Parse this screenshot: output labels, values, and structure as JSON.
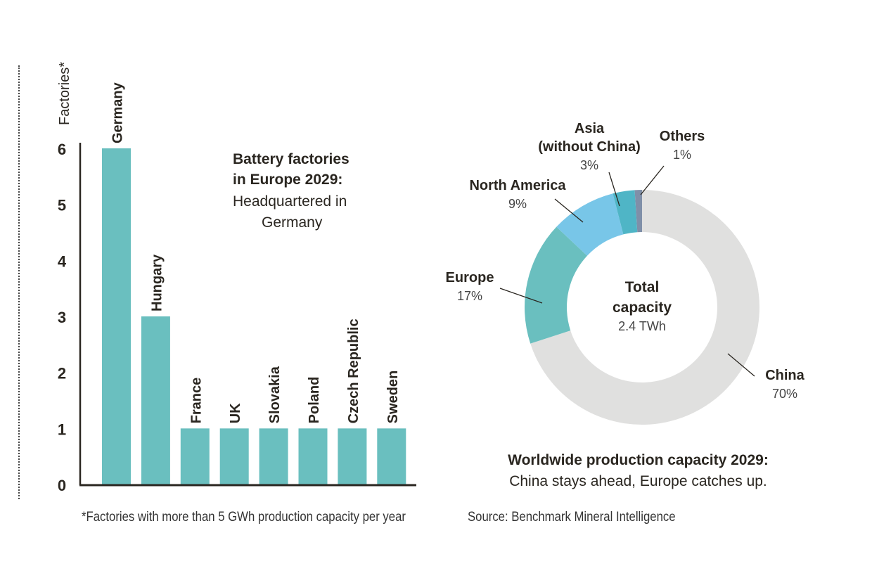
{
  "chart_data": [
    {
      "type": "bar",
      "title": "Battery factories in Europe 2029:",
      "subtitle": "Headquartered in Germany",
      "ylabel": "Factories*",
      "xlabel": "",
      "categories": [
        "Germany",
        "Hungary",
        "France",
        "UK",
        "Slovakia",
        "Poland",
        "Czech Republic",
        "Sweden"
      ],
      "values": [
        6,
        3,
        1,
        1,
        1,
        1,
        1,
        1
      ],
      "ylim": [
        0,
        6
      ],
      "yticks": [
        0,
        1,
        2,
        3,
        4,
        5,
        6
      ],
      "grid": false,
      "bar_color": "#6abfbf"
    },
    {
      "type": "pie",
      "donut": true,
      "title": "Worldwide production capacity 2029:",
      "subtitle": "China stays ahead, Europe catches up.",
      "center_label": "Total capacity",
      "center_value": "2.4 TWh",
      "slices": [
        {
          "label": "China",
          "value": 70,
          "display": "70%",
          "color": "#e0e0df"
        },
        {
          "label": "Europe",
          "value": 17,
          "display": "17%",
          "color": "#6abfbf"
        },
        {
          "label": "North America",
          "value": 9,
          "display": "9%",
          "color": "#78c6e8"
        },
        {
          "label": "Asia (without China)",
          "value": 3,
          "display": "3%",
          "color": "#4fb5c6"
        },
        {
          "label": "Others",
          "value": 1,
          "display": "1%",
          "color": "#7f8fa8"
        }
      ]
    }
  ],
  "bar": {
    "ylabel": "Factories*",
    "title_line1": "Battery factories",
    "title_line2": "in Europe 2029:",
    "subtitle_line1": "Headquartered in",
    "subtitle_line2": "Germany"
  },
  "donut": {
    "center_line1": "Total",
    "center_line2": "capacity",
    "center_value": "2.4 TWh",
    "labels": {
      "asia_line1": "Asia",
      "asia_line2": "(without China)",
      "asia_pct": "3%",
      "others": "Others",
      "others_pct": "1%",
      "na": "North America",
      "na_pct": "9%",
      "europe": "Europe",
      "europe_pct": "17%",
      "china": "China",
      "china_pct": "70%"
    },
    "caption_title": "Worldwide production capacity 2029:",
    "caption_sub": "China stays ahead, Europe catches up."
  },
  "footer": {
    "footnote": "*Factories with more than 5 GWh production capacity per year",
    "source": "Source: Benchmark Mineral Intelligence"
  }
}
